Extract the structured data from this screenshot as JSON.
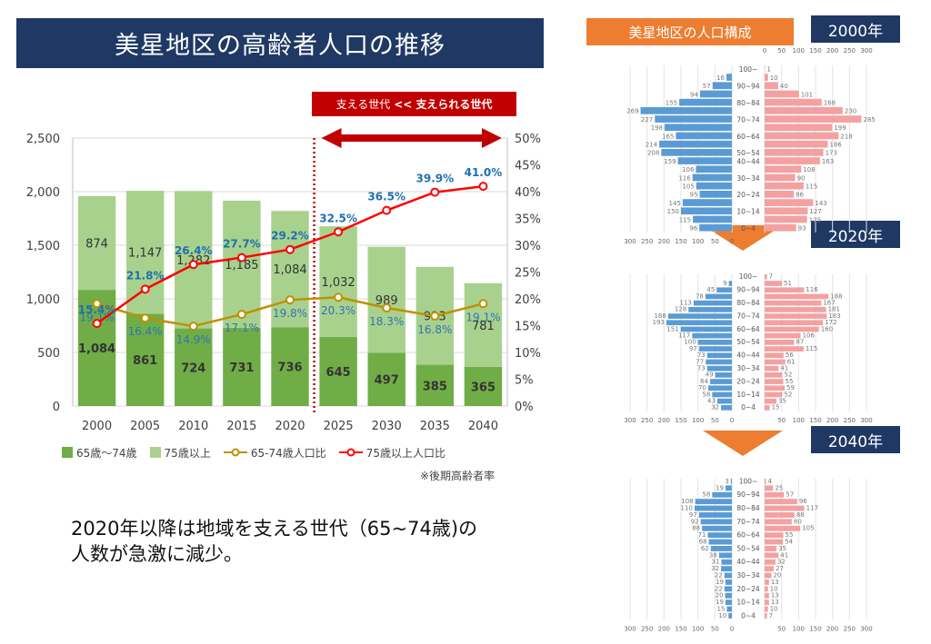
{
  "title": "美星地区の高齢者人口の推移",
  "support_box": {
    "part1": "支える世代",
    "part2": "<<",
    "part3": "支えられる世代"
  },
  "note": "※後期高齢者率",
  "summary_line1": "2020年以降は地域を支える世代（65~74歳)の",
  "summary_line2": "人数が急激に減少。",
  "colors": {
    "bar_65_74": "#70ad47",
    "bar_75plus": "#a9d18e",
    "line_65_74": "#bf9000",
    "line_75plus": "#ff0000",
    "red_marker": "#c00000",
    "title_bg": "#1f3864",
    "pyr_label_bg": "#ed7d31",
    "male": "#5b9bd5",
    "female": "#f4a1a1"
  },
  "chart_data": [
    {
      "type": "bar",
      "stacked": true,
      "categories": [
        "2000",
        "2005",
        "2010",
        "2015",
        "2020",
        "2025",
        "2030",
        "2035",
        "2040"
      ],
      "ylim": [
        0,
        2500
      ],
      "yticks": [
        "0",
        "500",
        "1,000",
        "1,500",
        "2,000",
        "2,500"
      ],
      "y2lim": [
        0,
        50
      ],
      "y2ticks": [
        "0%",
        "5%",
        "10%",
        "15%",
        "20%",
        "25%",
        "30%",
        "35%",
        "40%",
        "45%",
        "50%"
      ],
      "series": [
        {
          "name": "65歳～74歳",
          "kind": "bar",
          "values": [
            1084,
            861,
            724,
            731,
            736,
            645,
            497,
            385,
            365
          ],
          "labels": [
            "1,084",
            "861",
            "724",
            "731",
            "736",
            "645",
            "497",
            "385",
            "365"
          ]
        },
        {
          "name": "75歳以上",
          "kind": "bar",
          "values": [
            874,
            1147,
            1282,
            1185,
            1084,
            1032,
            989,
            913,
            781
          ],
          "labels": [
            "874",
            "1,147",
            "1,282",
            "1,185",
            "1,084",
            "1,032",
            "989",
            "913",
            "781"
          ]
        },
        {
          "name": "65-74歳人口比",
          "kind": "line",
          "axis": "right",
          "values": [
            19.1,
            16.4,
            14.9,
            17.1,
            19.8,
            20.3,
            18.3,
            16.8,
            19.1
          ],
          "labels": [
            "19.1%",
            "16.4%",
            "14.9%",
            "17.1%",
            "19.8%",
            "20.3%",
            "18.3%",
            "16.8%",
            "19.1%"
          ]
        },
        {
          "name": "75歳以上人口比",
          "kind": "line",
          "axis": "right",
          "values": [
            15.4,
            21.8,
            26.4,
            27.7,
            29.2,
            32.5,
            36.5,
            39.9,
            41.0
          ],
          "labels": [
            "15.4%",
            "21.8%",
            "26.4%",
            "27.7%",
            "29.2%",
            "32.5%",
            "36.5%",
            "39.9%",
            "41.0%"
          ]
        }
      ],
      "marker_between": [
        "2020",
        "2025"
      ],
      "grid": true
    },
    {
      "type": "bar",
      "orientation": "horizontal-pyramid",
      "title": "美星地区の人口構成",
      "panels": [
        {
          "year": "2000年",
          "age_groups": [
            "100~",
            "90~94",
            "80~84",
            "70~74",
            "60~64",
            "50~54",
            "40~44",
            "30~34",
            "20~24",
            "10~14",
            "0~4"
          ],
          "male": [
            0,
            16,
            57,
            94,
            155,
            269,
            227,
            198,
            165,
            214,
            208,
            159,
            106,
            116,
            105,
            95,
            145,
            150,
            115,
            96
          ],
          "female": [
            1,
            10,
            40,
            101,
            168,
            230,
            285,
            199,
            218,
            186,
            173,
            163,
            108,
            90,
            115,
            86,
            143,
            127,
            125,
            93
          ],
          "male_labels": [
            "16",
            "57",
            "94",
            "155",
            "269",
            "227",
            "198",
            "165",
            "214",
            "208",
            "159",
            "106",
            "116",
            "105",
            "95",
            "145",
            "150",
            "115",
            "96"
          ],
          "female_labels": [
            "1",
            "10",
            "40",
            "101",
            "168",
            "230",
            "285",
            "199",
            "218",
            "186",
            "173",
            "163",
            "108",
            "90",
            "115",
            "86",
            "143",
            "127",
            "125",
            "93"
          ],
          "top_ticks": [
            "0",
            "50",
            "100",
            "150",
            "200",
            "250",
            "300"
          ],
          "bottom_ticks": [
            "300",
            "250",
            "200",
            "150",
            "100",
            "50",
            "0"
          ]
        },
        {
          "year": "2020年",
          "age_groups": [
            "100~",
            "90~94",
            "80~84",
            "70~74",
            "60~64",
            "50~54",
            "40~44",
            "30~34",
            "20~24",
            "10~14",
            "0~4"
          ],
          "male": [
            0,
            9,
            45,
            78,
            113,
            128,
            188,
            193,
            151,
            117,
            100,
            97,
            73,
            77,
            73,
            49,
            64,
            70,
            58,
            43,
            32
          ],
          "female": [
            7,
            51,
            116,
            188,
            167,
            181,
            183,
            172,
            160,
            106,
            87,
            115,
            56,
            61,
            41,
            52,
            55,
            59,
            52,
            35,
            15
          ],
          "male_labels": [
            "9",
            "45",
            "78",
            "113",
            "128",
            "188",
            "193",
            "151",
            "117",
            "100",
            "97",
            "73",
            "77",
            "73",
            "49",
            "64",
            "70",
            "58",
            "43",
            "32"
          ],
          "female_labels": [
            "7",
            "51",
            "116",
            "188",
            "167",
            "181",
            "183",
            "172",
            "160",
            "106",
            "87",
            "115",
            "56",
            "61",
            "41",
            "52",
            "55",
            "59",
            "52",
            "35",
            "15"
          ],
          "bottom_ticks": [
            "300",
            "250",
            "200",
            "150",
            "100",
            "50",
            "0",
            "50",
            "100",
            "150",
            "200",
            "250",
            "300"
          ]
        },
        {
          "year": "2040年",
          "age_groups": [
            "100~",
            "90~94",
            "80~84",
            "70~74",
            "60~64",
            "50~54",
            "40~44",
            "30~34",
            "20~24",
            "10~14",
            "0~4"
          ],
          "male": [
            3,
            19,
            58,
            108,
            110,
            97,
            92,
            88,
            71,
            68,
            62,
            38,
            31,
            32,
            22,
            19,
            22,
            20,
            19,
            15,
            10
          ],
          "female": [
            4,
            25,
            57,
            96,
            117,
            88,
            80,
            105,
            55,
            54,
            35,
            41,
            32,
            27,
            20,
            13,
            10,
            13,
            13,
            10,
            7
          ],
          "male_labels": [
            "3",
            "19",
            "58",
            "108",
            "110",
            "97",
            "92",
            "88",
            "71",
            "68",
            "62",
            "38",
            "31",
            "32",
            "22",
            "19",
            "22",
            "20",
            "19",
            "15",
            "10"
          ],
          "female_labels": [
            "4",
            "25",
            "57",
            "96",
            "117",
            "88",
            "80",
            "105",
            "55",
            "54",
            "35",
            "41",
            "32",
            "27",
            "20",
            "13",
            "10",
            "13",
            "13",
            "10",
            "7"
          ],
          "bottom_ticks": [
            "300",
            "250",
            "200",
            "150",
            "100",
            "50",
            "0",
            "50",
            "100",
            "150",
            "200",
            "250",
            "300"
          ]
        }
      ]
    }
  ]
}
